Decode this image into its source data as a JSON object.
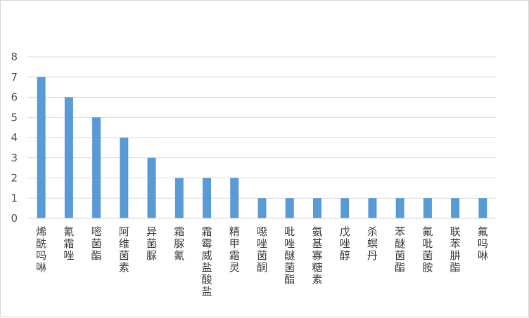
{
  "chart_data": {
    "type": "bar",
    "title": "",
    "xlabel": "",
    "ylabel": "",
    "ylim": [
      0,
      8
    ],
    "yticks": [
      0,
      1,
      2,
      3,
      4,
      5,
      6,
      7,
      8
    ],
    "grid": true,
    "legend": "none",
    "bar_color": "#5b9bd5",
    "grid_color": "#d9d9d9",
    "categories": [
      "烯酰吗啉",
      "氰霜唑",
      "嘧菌酯",
      "阿维菌素",
      "异菌脲",
      "霜脲氰",
      "霜霉威盐酸盐",
      "精甲霜灵",
      "噁唑菌酮",
      "吡唑醚菌酯",
      "氨基寡糖素",
      "戊唑醇",
      "杀螟丹",
      "苯醚菌酯",
      "氟吡菌胺",
      "联苯肼酯",
      "氟吗啉"
    ],
    "values": [
      7,
      6,
      5,
      4,
      3,
      2,
      2,
      2,
      1,
      1,
      1,
      1,
      1,
      1,
      1,
      1,
      1
    ]
  }
}
